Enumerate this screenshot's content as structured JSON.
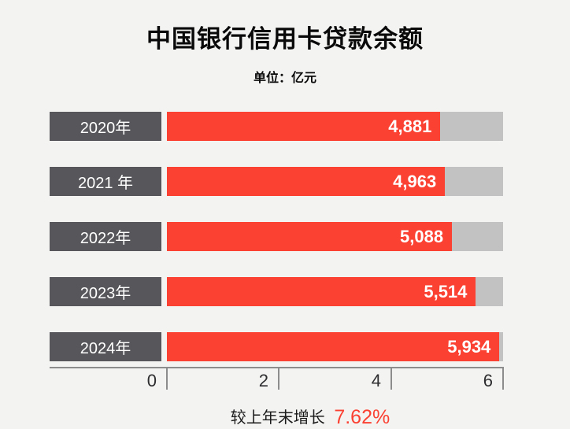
{
  "colors": {
    "background": "#f3f3f2",
    "bar_red": "#fa4132",
    "track": "#c2c2c2",
    "label_box": "#57575b",
    "axis": "#8c8c8d",
    "title_text": "#0a0a0a"
  },
  "header": {
    "title": "中国银行信用卡贷款余额",
    "subtitle": "单位：亿元"
  },
  "chart_data": {
    "type": "bar",
    "orientation": "horizontal",
    "title": "中国银行信用卡贷款余额",
    "unit_label": "单位：亿元",
    "categories": [
      "2020年",
      "2021 年",
      "2022年",
      "2023年",
      "2024年"
    ],
    "values": [
      4881,
      4963,
      5088,
      5514,
      5934
    ],
    "xlim": [
      0,
      6000
    ],
    "x_tick_values": [
      0,
      2000,
      4000,
      6000
    ],
    "x_tick_labels": [
      "0",
      "2",
      "4",
      "6"
    ],
    "grid": "off",
    "legend": "none",
    "annotation": "较上年末增长 7.62%",
    "rows": [
      {
        "year": "2020年",
        "value": 4881,
        "display": "4,881"
      },
      {
        "year": "2021 年",
        "value": 4963,
        "display": "4,963"
      },
      {
        "year": "2022年",
        "value": 5088,
        "display": "5,088"
      },
      {
        "year": "2023年",
        "value": 5514,
        "display": "5,514"
      },
      {
        "year": "2024年",
        "value": 5934,
        "display": "5,934"
      }
    ]
  },
  "footer": {
    "caption_prefix": "较上年末增长",
    "growth_value": "7.62%"
  }
}
